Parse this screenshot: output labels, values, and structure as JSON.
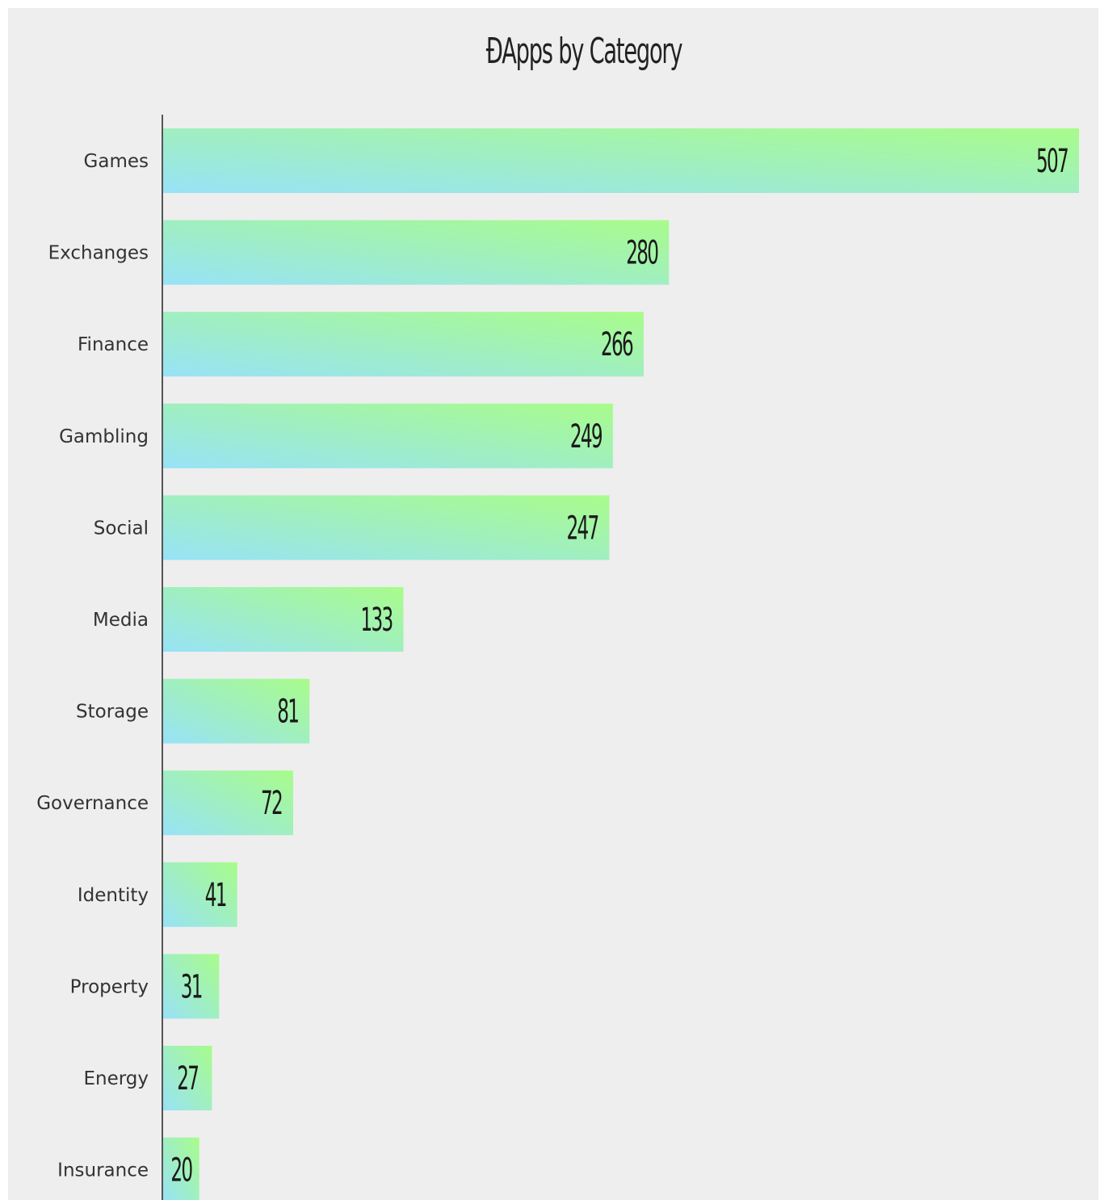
{
  "colors": {
    "background": "#eeeeee",
    "bar_gradient_start": "#98e2f7",
    "bar_gradient_end": "#a8fc8a",
    "axis": "#222222"
  },
  "chart_data": {
    "type": "bar",
    "orientation": "horizontal",
    "title": "ĐApps by Category",
    "xlabel": "",
    "ylabel": "",
    "categories": [
      "Games",
      "Exchanges",
      "Finance",
      "Gambling",
      "Social",
      "Media",
      "Storage",
      "Governance",
      "Identity",
      "Property",
      "Energy",
      "Insurance"
    ],
    "values": [
      507,
      280,
      266,
      249,
      247,
      133,
      81,
      72,
      41,
      31,
      27,
      20
    ],
    "data_labels": true,
    "grid": false,
    "legend": "none"
  }
}
